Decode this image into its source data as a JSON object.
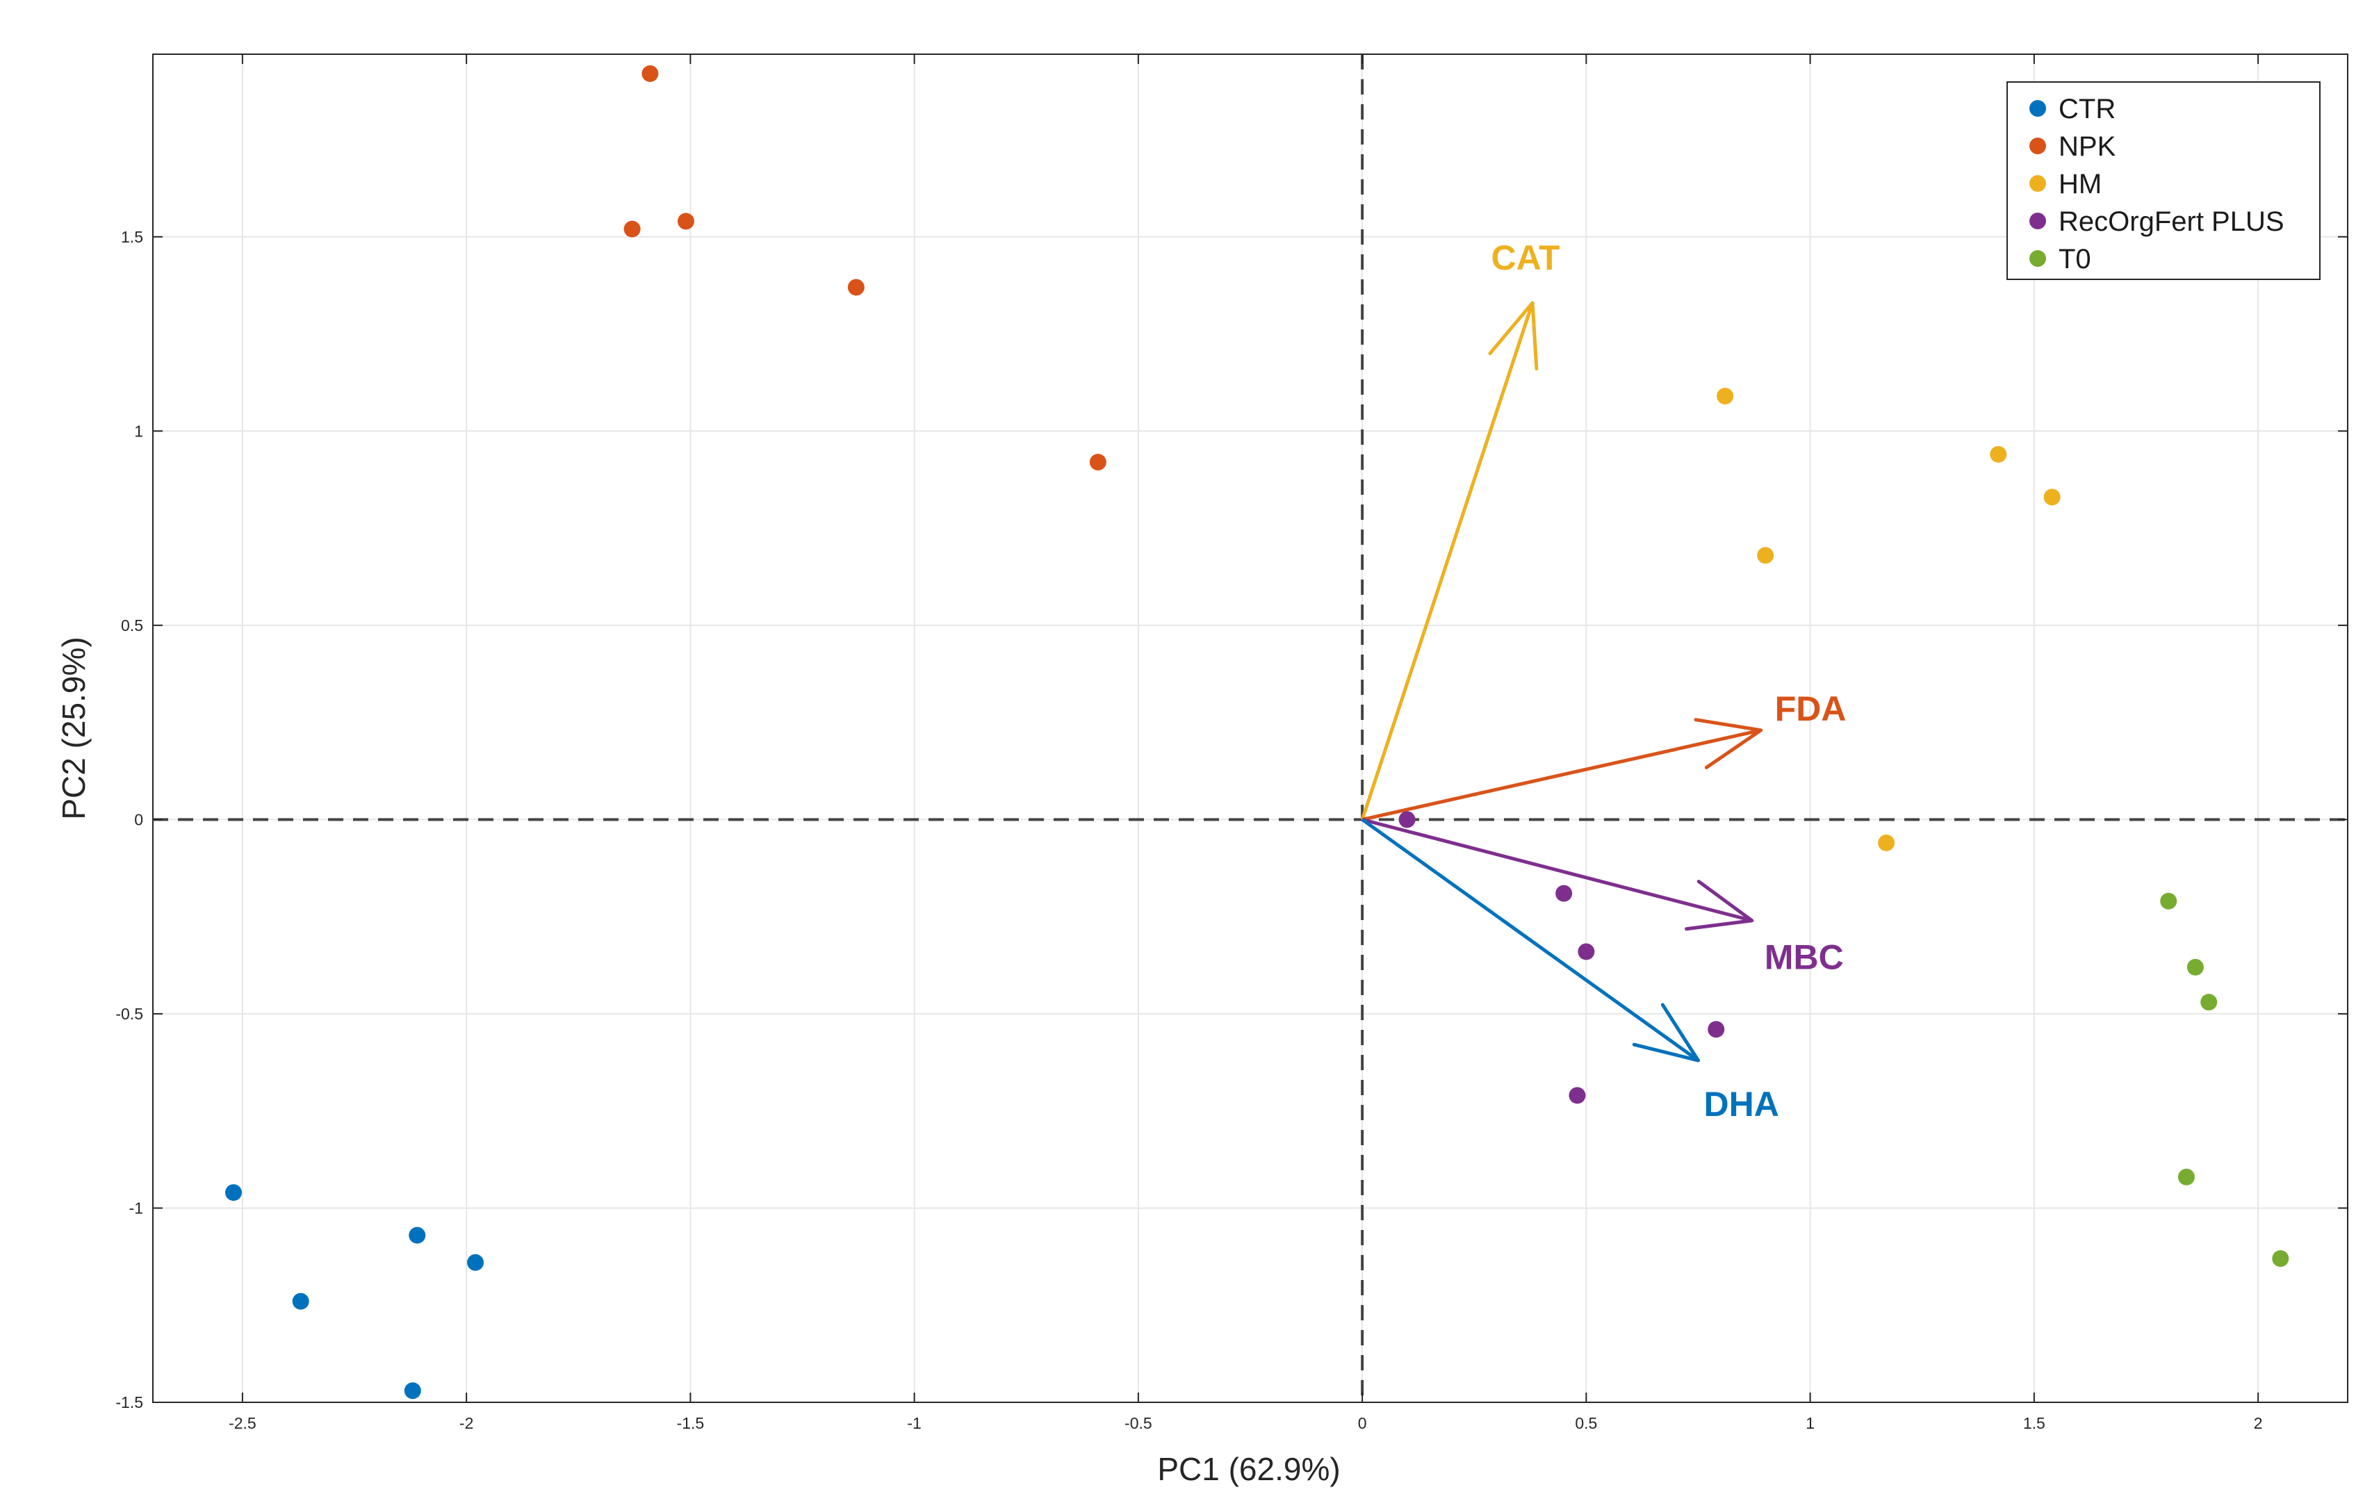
{
  "chart_data": {
    "type": "scatter",
    "subtype": "pca-biplot",
    "title": "",
    "xlabel": "PC1 (62.9%)",
    "ylabel": "PC2 (25.9%)",
    "xlim": [
      -2.7,
      2.2
    ],
    "ylim": [
      -1.5,
      1.97
    ],
    "xticks": [
      -2.5,
      -2,
      -1.5,
      -1,
      -0.5,
      0,
      0.5,
      1,
      1.5,
      2
    ],
    "xtick_labels": [
      "-2.5",
      "-2",
      "-1.5",
      "-1",
      "-0.5",
      "0",
      "0.5",
      "1",
      "1.5",
      "2"
    ],
    "yticks": [
      -1.5,
      -1,
      -0.5,
      0,
      0.5,
      1,
      1.5
    ],
    "ytick_labels": [
      "-1.5",
      "-1",
      "-0.5",
      "0",
      "0.5",
      "1",
      "1.5"
    ],
    "grid": true,
    "legend_position": "top-right",
    "series": [
      {
        "name": "CTR",
        "color": "#0072BD",
        "points": [
          [
            -2.52,
            -0.96
          ],
          [
            -2.37,
            -1.24
          ],
          [
            -2.11,
            -1.07
          ],
          [
            -1.98,
            -1.14
          ],
          [
            -2.12,
            -1.47
          ]
        ]
      },
      {
        "name": "NPK",
        "color": "#D95319",
        "points": [
          [
            -1.59,
            1.92
          ],
          [
            -1.51,
            1.54
          ],
          [
            -1.63,
            1.52
          ],
          [
            -1.13,
            1.37
          ],
          [
            -0.59,
            0.92
          ]
        ]
      },
      {
        "name": "HM",
        "color": "#EDB120",
        "points": [
          [
            0.81,
            1.09
          ],
          [
            1.42,
            0.94
          ],
          [
            1.54,
            0.83
          ],
          [
            0.9,
            0.68
          ],
          [
            1.17,
            -0.06
          ]
        ]
      },
      {
        "name": "RecOrgFert PLUS",
        "color": "#7E2F8E",
        "points": [
          [
            0.1,
            0.0
          ],
          [
            0.45,
            -0.19
          ],
          [
            0.5,
            -0.34
          ],
          [
            0.79,
            -0.54
          ],
          [
            0.48,
            -0.71
          ]
        ]
      },
      {
        "name": "T0",
        "color": "#77AC30",
        "points": [
          [
            1.8,
            -0.21
          ],
          [
            1.86,
            -0.38
          ],
          [
            1.89,
            -0.47
          ],
          [
            1.84,
            -0.92
          ],
          [
            2.05,
            -1.13
          ]
        ]
      }
    ],
    "loadings": [
      {
        "name": "CAT",
        "color": "#EDB120",
        "x": 0.38,
        "y": 1.33
      },
      {
        "name": "FDA",
        "color": "#D95319",
        "x": 0.89,
        "y": 0.23
      },
      {
        "name": "MBC",
        "color": "#7E2F8E",
        "x": 0.87,
        "y": -0.26
      },
      {
        "name": "DHA",
        "color": "#0072BD",
        "x": 0.75,
        "y": -0.62
      }
    ]
  }
}
